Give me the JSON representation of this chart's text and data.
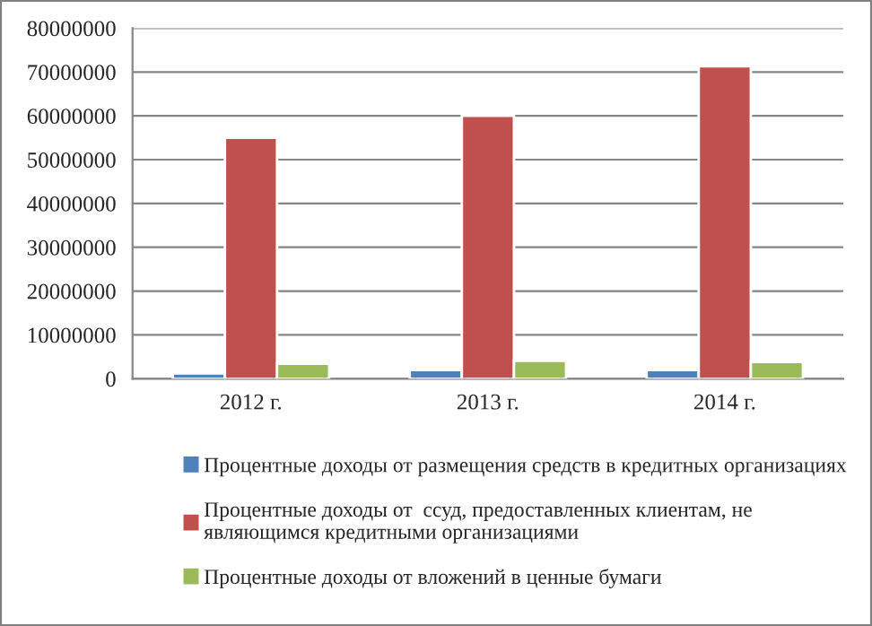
{
  "chart_data": {
    "type": "bar",
    "categories": [
      "2012 г.",
      "2013 г.",
      "2014 г."
    ],
    "series": [
      {
        "name": "Процентные доходы от размещения средств в кредитных организациях",
        "color": "#4f81bd",
        "values": [
          1200000,
          2000000,
          2000000
        ]
      },
      {
        "name": "Процентные доходы от  ссуд, предоставленных клиентам, не являющимся кредитными организациями",
        "color": "#c0504d",
        "values": [
          55000000,
          60000000,
          71300000
        ]
      },
      {
        "name": "Процентные доходы от вложений в ценные бумаги",
        "color": "#9bbb59",
        "values": [
          3400000,
          4100000,
          3800000
        ]
      }
    ],
    "ylim": [
      0,
      80000000
    ],
    "yticks": [
      0,
      10000000,
      20000000,
      30000000,
      40000000,
      50000000,
      60000000,
      70000000,
      80000000
    ],
    "grid": "y",
    "legend": "bottom"
  }
}
